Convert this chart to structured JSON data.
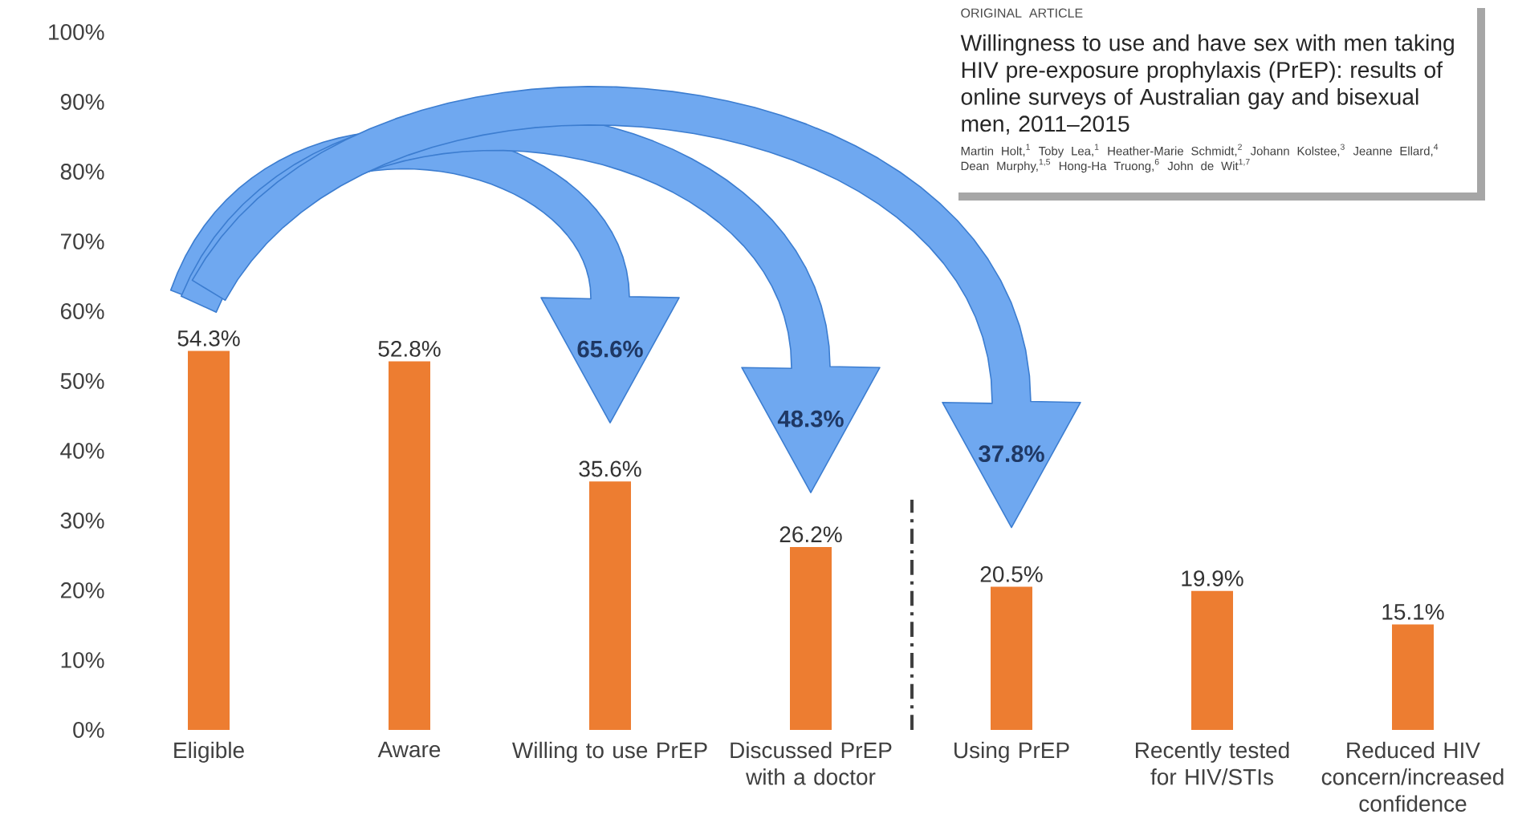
{
  "chart_data": {
    "type": "bar",
    "color": "#ED7D31",
    "categories": [
      "Eligible",
      "Aware",
      "Willing to use PrEP",
      "Discussed PrEP with a doctor",
      "Using PrEP",
      "Recently tested for HIV/STIs",
      "Reduced HIV concern/increased confidence"
    ],
    "values": [
      54.3,
      52.8,
      35.6,
      26.2,
      20.5,
      19.9,
      15.1
    ],
    "value_labels": [
      "54.3%",
      "52.8%",
      "35.6%",
      "26.2%",
      "20.5%",
      "19.9%",
      "15.1%"
    ],
    "ylim": [
      0,
      100
    ],
    "yticks": [
      {
        "value": 0,
        "label": "0%"
      },
      {
        "value": 10,
        "label": "10%"
      },
      {
        "value": 20,
        "label": "20%"
      },
      {
        "value": 30,
        "label": "30%"
      },
      {
        "value": 40,
        "label": "40%"
      },
      {
        "value": 50,
        "label": "50%"
      },
      {
        "value": 60,
        "label": "60%"
      },
      {
        "value": 70,
        "label": "70%"
      },
      {
        "value": 80,
        "label": "80%"
      },
      {
        "value": 90,
        "label": "90%"
      },
      {
        "value": 100,
        "label": "100%"
      }
    ],
    "annotations": [
      "65.6%",
      "48.3%",
      "37.8%",
      "ORIGINAL ARTICLE",
      "Willingness to use and have sex with men taking HIV pre-exposure prophylaxis (PrEP): results of online surveys of Australian gay and bisexual men, 2011–2015",
      "Martin Holt,$^{1}$ Toby Lea,$^{1}$ Heather-Marie Schmidt,$^{2}$ Johann Kolstee,$^{3}$ Jeanne Ellard,$^{4}$ Dean Murphy,$^{1,5}$ Hong-Ha Truong,$^{6}$ John de Wit$^{1,7}$"
    ]
  }
}
